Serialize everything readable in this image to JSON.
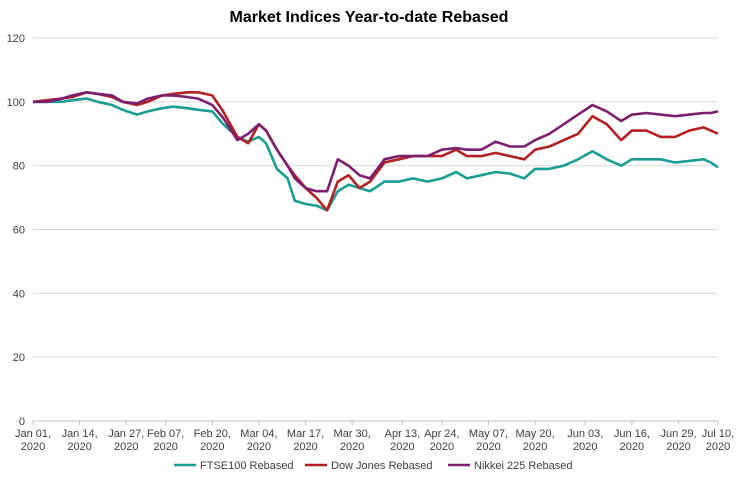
{
  "chart_data": {
    "type": "line",
    "title": "Market Indices Year-to-date Rebased",
    "xlabel": "",
    "ylabel": "",
    "ylim": [
      0,
      120
    ],
    "yticks": [
      0,
      20,
      40,
      60,
      80,
      100,
      120
    ],
    "xticks": [
      {
        "date": "2020-01-01",
        "label": [
          "Jan 01,",
          "2020"
        ]
      },
      {
        "date": "2020-01-14",
        "label": [
          "Jan 14,",
          "2020"
        ]
      },
      {
        "date": "2020-01-27",
        "label": [
          "Jan 27,",
          "2020"
        ]
      },
      {
        "date": "2020-02-07",
        "label": [
          "Feb 07,",
          "2020"
        ]
      },
      {
        "date": "2020-02-20",
        "label": [
          "Feb 20,",
          "2020"
        ]
      },
      {
        "date": "2020-03-04",
        "label": [
          "Mar 04,",
          "2020"
        ]
      },
      {
        "date": "2020-03-17",
        "label": [
          "Mar 17,",
          "2020"
        ]
      },
      {
        "date": "2020-03-30",
        "label": [
          "Mar 30,",
          "2020"
        ]
      },
      {
        "date": "2020-04-13",
        "label": [
          "Apr 13,",
          "2020"
        ]
      },
      {
        "date": "2020-04-24",
        "label": [
          "Apr 24,",
          "2020"
        ]
      },
      {
        "date": "2020-05-07",
        "label": [
          "May 07,",
          "2020"
        ]
      },
      {
        "date": "2020-05-20",
        "label": [
          "May 20,",
          "2020"
        ]
      },
      {
        "date": "2020-06-03",
        "label": [
          "Jun 03,",
          "2020"
        ]
      },
      {
        "date": "2020-06-16",
        "label": [
          "Jun 16,",
          "2020"
        ]
      },
      {
        "date": "2020-06-29",
        "label": [
          "Jun 29,",
          "2020"
        ]
      },
      {
        "date": "2020-07-10",
        "label": [
          "Jul 10,",
          "2020"
        ]
      }
    ],
    "xlim": [
      "2020-01-01",
      "2020-07-10"
    ],
    "grid": "horizontal",
    "legend": "bottom",
    "series": [
      {
        "name": "FTSE100 Rebased",
        "color": "#1a9e91",
        "points": [
          [
            "2020-01-01",
            100
          ],
          [
            "2020-01-05",
            100
          ],
          [
            "2020-01-09",
            100
          ],
          [
            "2020-01-12",
            100.5
          ],
          [
            "2020-01-16",
            101
          ],
          [
            "2020-01-19",
            100
          ],
          [
            "2020-01-23",
            99
          ],
          [
            "2020-01-26",
            97.5
          ],
          [
            "2020-01-30",
            96
          ],
          [
            "2020-02-02",
            97
          ],
          [
            "2020-02-06",
            98
          ],
          [
            "2020-02-09",
            98.5
          ],
          [
            "2020-02-13",
            98
          ],
          [
            "2020-02-16",
            97.5
          ],
          [
            "2020-02-20",
            97
          ],
          [
            "2020-02-23",
            93
          ],
          [
            "2020-02-27",
            89
          ],
          [
            "2020-03-01",
            87.5
          ],
          [
            "2020-03-04",
            89
          ],
          [
            "2020-03-06",
            87
          ],
          [
            "2020-03-09",
            79
          ],
          [
            "2020-03-12",
            76
          ],
          [
            "2020-03-14",
            69
          ],
          [
            "2020-03-17",
            68
          ],
          [
            "2020-03-20",
            67.5
          ],
          [
            "2020-03-23",
            66
          ],
          [
            "2020-03-26",
            72
          ],
          [
            "2020-03-29",
            74
          ],
          [
            "2020-04-01",
            73
          ],
          [
            "2020-04-04",
            72
          ],
          [
            "2020-04-08",
            75
          ],
          [
            "2020-04-12",
            75
          ],
          [
            "2020-04-16",
            76
          ],
          [
            "2020-04-20",
            75
          ],
          [
            "2020-04-24",
            76
          ],
          [
            "2020-04-28",
            78
          ],
          [
            "2020-05-01",
            76
          ],
          [
            "2020-05-05",
            77
          ],
          [
            "2020-05-09",
            78
          ],
          [
            "2020-05-13",
            77.5
          ],
          [
            "2020-05-17",
            76
          ],
          [
            "2020-05-20",
            79
          ],
          [
            "2020-05-24",
            79
          ],
          [
            "2020-05-28",
            80
          ],
          [
            "2020-06-01",
            82
          ],
          [
            "2020-06-05",
            84.5
          ],
          [
            "2020-06-09",
            82
          ],
          [
            "2020-06-13",
            80
          ],
          [
            "2020-06-16",
            82
          ],
          [
            "2020-06-20",
            82
          ],
          [
            "2020-06-24",
            82
          ],
          [
            "2020-06-28",
            81
          ],
          [
            "2020-07-02",
            81.5
          ],
          [
            "2020-07-06",
            82
          ],
          [
            "2020-07-08",
            81
          ],
          [
            "2020-07-10",
            79.5
          ]
        ]
      },
      {
        "name": "Dow Jones Rebased",
        "color": "#b22222",
        "points": [
          [
            "2020-01-01",
            100
          ],
          [
            "2020-01-05",
            100.5
          ],
          [
            "2020-01-09",
            101
          ],
          [
            "2020-01-12",
            101.5
          ],
          [
            "2020-01-16",
            103
          ],
          [
            "2020-01-19",
            102.5
          ],
          [
            "2020-01-23",
            101.5
          ],
          [
            "2020-01-26",
            100
          ],
          [
            "2020-01-30",
            99
          ],
          [
            "2020-02-02",
            100
          ],
          [
            "2020-02-06",
            102
          ],
          [
            "2020-02-09",
            102.5
          ],
          [
            "2020-02-13",
            103
          ],
          [
            "2020-02-16",
            103
          ],
          [
            "2020-02-20",
            102
          ],
          [
            "2020-02-23",
            97
          ],
          [
            "2020-02-27",
            89
          ],
          [
            "2020-03-01",
            87
          ],
          [
            "2020-03-04",
            93
          ],
          [
            "2020-03-06",
            91
          ],
          [
            "2020-03-09",
            85
          ],
          [
            "2020-03-12",
            80
          ],
          [
            "2020-03-14",
            77
          ],
          [
            "2020-03-17",
            73
          ],
          [
            "2020-03-20",
            70
          ],
          [
            "2020-03-23",
            66
          ],
          [
            "2020-03-26",
            75
          ],
          [
            "2020-03-29",
            77
          ],
          [
            "2020-04-01",
            73
          ],
          [
            "2020-04-04",
            75
          ],
          [
            "2020-04-08",
            81
          ],
          [
            "2020-04-12",
            82
          ],
          [
            "2020-04-16",
            83
          ],
          [
            "2020-04-20",
            83
          ],
          [
            "2020-04-24",
            83
          ],
          [
            "2020-04-28",
            85
          ],
          [
            "2020-05-01",
            83
          ],
          [
            "2020-05-05",
            83
          ],
          [
            "2020-05-09",
            84
          ],
          [
            "2020-05-13",
            83
          ],
          [
            "2020-05-17",
            82
          ],
          [
            "2020-05-20",
            85
          ],
          [
            "2020-05-24",
            86
          ],
          [
            "2020-05-28",
            88
          ],
          [
            "2020-06-01",
            90
          ],
          [
            "2020-06-05",
            95.5
          ],
          [
            "2020-06-09",
            93
          ],
          [
            "2020-06-13",
            88
          ],
          [
            "2020-06-16",
            91
          ],
          [
            "2020-06-20",
            91
          ],
          [
            "2020-06-24",
            89
          ],
          [
            "2020-06-28",
            89
          ],
          [
            "2020-07-02",
            91
          ],
          [
            "2020-07-06",
            92
          ],
          [
            "2020-07-08",
            91
          ],
          [
            "2020-07-10",
            90
          ]
        ]
      },
      {
        "name": "Nikkei 225 Rebased",
        "color": "#7b1f6e",
        "points": [
          [
            "2020-01-01",
            100
          ],
          [
            "2020-01-05",
            100
          ],
          [
            "2020-01-09",
            101
          ],
          [
            "2020-01-12",
            102
          ],
          [
            "2020-01-16",
            103
          ],
          [
            "2020-01-19",
            102.5
          ],
          [
            "2020-01-23",
            102
          ],
          [
            "2020-01-26",
            100
          ],
          [
            "2020-01-30",
            99.5
          ],
          [
            "2020-02-02",
            101
          ],
          [
            "2020-02-06",
            102
          ],
          [
            "2020-02-09",
            102
          ],
          [
            "2020-02-13",
            101.5
          ],
          [
            "2020-02-16",
            101
          ],
          [
            "2020-02-20",
            99
          ],
          [
            "2020-02-23",
            95
          ],
          [
            "2020-02-27",
            88
          ],
          [
            "2020-03-01",
            90
          ],
          [
            "2020-03-04",
            93
          ],
          [
            "2020-03-06",
            91
          ],
          [
            "2020-03-09",
            85
          ],
          [
            "2020-03-12",
            80
          ],
          [
            "2020-03-14",
            76
          ],
          [
            "2020-03-17",
            73
          ],
          [
            "2020-03-20",
            72
          ],
          [
            "2020-03-23",
            72
          ],
          [
            "2020-03-26",
            82
          ],
          [
            "2020-03-29",
            80
          ],
          [
            "2020-04-01",
            77
          ],
          [
            "2020-04-04",
            76
          ],
          [
            "2020-04-08",
            82
          ],
          [
            "2020-04-12",
            83
          ],
          [
            "2020-04-16",
            83
          ],
          [
            "2020-04-20",
            83
          ],
          [
            "2020-04-24",
            85
          ],
          [
            "2020-04-28",
            85.5
          ],
          [
            "2020-05-01",
            85
          ],
          [
            "2020-05-05",
            85
          ],
          [
            "2020-05-09",
            87.5
          ],
          [
            "2020-05-13",
            86
          ],
          [
            "2020-05-17",
            86
          ],
          [
            "2020-05-20",
            88
          ],
          [
            "2020-05-24",
            90
          ],
          [
            "2020-05-28",
            93
          ],
          [
            "2020-06-01",
            96
          ],
          [
            "2020-06-05",
            99
          ],
          [
            "2020-06-09",
            97
          ],
          [
            "2020-06-13",
            94
          ],
          [
            "2020-06-16",
            96
          ],
          [
            "2020-06-20",
            96.5
          ],
          [
            "2020-06-24",
            96
          ],
          [
            "2020-06-28",
            95.5
          ],
          [
            "2020-07-02",
            96
          ],
          [
            "2020-07-06",
            96.5
          ],
          [
            "2020-07-08",
            96.5
          ],
          [
            "2020-07-10",
            97
          ]
        ]
      }
    ]
  }
}
